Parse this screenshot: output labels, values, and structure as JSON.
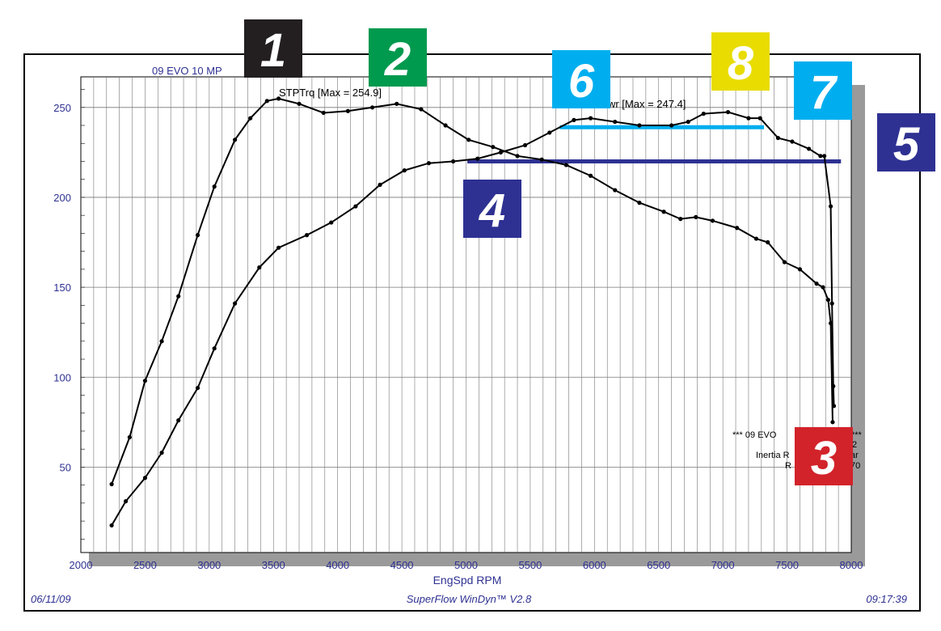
{
  "chart_data": {
    "type": "line",
    "title": "09 EVO 10 MP",
    "xlabel": "EngSpd  RPM",
    "xlim": [
      2000,
      8000
    ],
    "ylim": [
      2.5,
      267
    ],
    "xticks": [
      2000,
      2500,
      3000,
      3500,
      4000,
      4500,
      5000,
      5500,
      6000,
      6500,
      7000,
      7500,
      8000
    ],
    "yticks": [
      50,
      100,
      150,
      200,
      250
    ],
    "grid": true,
    "series": [
      {
        "name": "STPTrq [Max = 254.9]",
        "color": "#000000",
        "x": [
          2240,
          2380,
          2500,
          2630,
          2760,
          2910,
          3040,
          3200,
          3320,
          3450,
          3540,
          3700,
          3890,
          4080,
          4270,
          4460,
          4650,
          4840,
          5020,
          5210,
          5400,
          5590,
          5780,
          5970,
          6160,
          6350,
          6540,
          6670,
          6790,
          6920,
          7110,
          7260,
          7350,
          7480,
          7600,
          7730,
          7780,
          7820,
          7840,
          7855
        ],
        "y": [
          40.5,
          66.6,
          98,
          120,
          145,
          179,
          206,
          232,
          244,
          253.6,
          254.9,
          252,
          247,
          248,
          250,
          252,
          249,
          240,
          232,
          228,
          223,
          221,
          218,
          212,
          204,
          197,
          192,
          188,
          189,
          187,
          183,
          177,
          175,
          164,
          160,
          152,
          150,
          143,
          130,
          75
        ]
      },
      {
        "name": "STPPwr [Max = 247.4]",
        "color": "#000000",
        "x": [
          2240,
          2350,
          2500,
          2630,
          2760,
          2910,
          3040,
          3200,
          3390,
          3540,
          3760,
          3950,
          4140,
          4330,
          4520,
          4710,
          4900,
          5090,
          5270,
          5460,
          5650,
          5840,
          5970,
          6160,
          6350,
          6600,
          6730,
          6850,
          7040,
          7200,
          7290,
          7430,
          7540,
          7670,
          7760,
          7790,
          7840,
          7850,
          7860,
          7865
        ],
        "y": [
          17.6,
          31,
          44,
          58,
          76,
          94,
          116,
          141,
          161,
          172,
          179,
          186,
          195,
          207,
          215,
          219,
          220,
          221.5,
          225,
          229,
          236,
          243,
          244,
          242,
          240,
          240,
          242,
          246.5,
          247.4,
          244,
          244,
          233,
          231,
          227,
          223,
          223,
          195,
          141,
          95,
          84
        ]
      }
    ],
    "reference_lines": [
      {
        "value": 239,
        "from": 5730,
        "to": 7320,
        "color": "#00aeef"
      },
      {
        "value": 220,
        "from": 5010,
        "to": 7920,
        "color": "#2e3192"
      }
    ],
    "legend_fragments": [
      "*** 09 EVO",
      "***",
      "2",
      "Inertia R",
      "ar",
      "R",
      "70"
    ],
    "footer": {
      "date": "06/11/09",
      "software": "SuperFlow WinDyn™ V2.8",
      "time": "09:17:39"
    }
  },
  "badges": [
    {
      "label": "1",
      "color": "#231f20"
    },
    {
      "label": "2",
      "color": "#009a4e"
    },
    {
      "label": "3",
      "color": "#d2232a"
    },
    {
      "label": "4",
      "color": "#2e3192"
    },
    {
      "label": "5",
      "color": "#2e3192"
    },
    {
      "label": "6",
      "color": "#00aeef"
    },
    {
      "label": "7",
      "color": "#00aeef"
    },
    {
      "label": "8",
      "color": "#e8dc00"
    }
  ]
}
